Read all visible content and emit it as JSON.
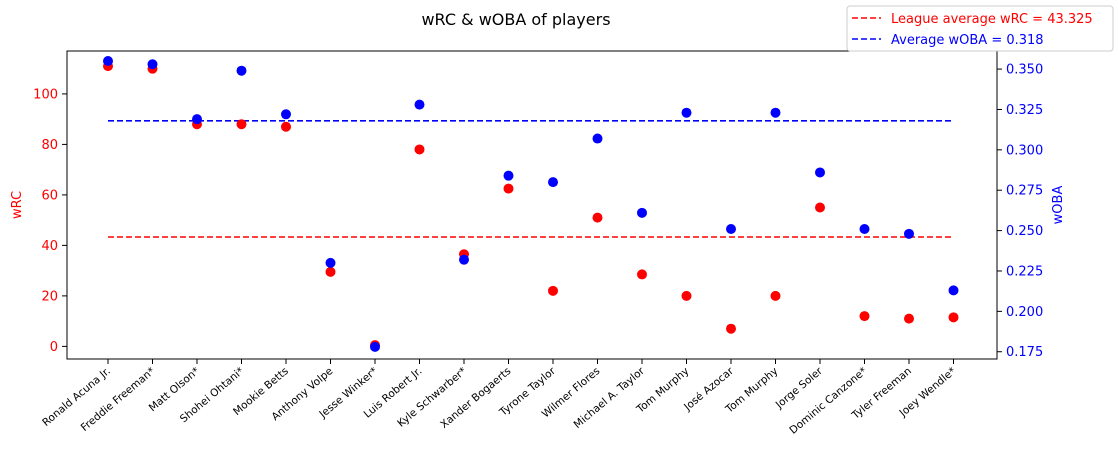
{
  "chart_data": {
    "type": "scatter",
    "title": "wRC & wOBA of players",
    "categories": [
      "Ronald Acuna Jr.",
      "Freddie Freeman*",
      "Matt Olson*",
      "Shohei Ohtani*",
      "Mookie Betts",
      "Anthony Volpe",
      "Jesse Winker*",
      "Luis Robert Jr.",
      "Kyle Schwarber*",
      "Xander Bogaerts",
      "Tyrone Taylor",
      "Wilmer Flores",
      "Michael A. Taylor",
      "Tom Murphy",
      "José Azocar",
      "Tom Murphy",
      "Jorge Soler",
      "Dominic Canzone*",
      "Tyler Freeman",
      "Joey Wendle*"
    ],
    "series": [
      {
        "name": "wRC",
        "axis": "left",
        "color": "#ff0000",
        "values": [
          111,
          110,
          88,
          88,
          87,
          29.5,
          0.5,
          78,
          36.5,
          62.5,
          22,
          51,
          28.5,
          20,
          7,
          20,
          55,
          12,
          11,
          11.5
        ]
      },
      {
        "name": "wOBA",
        "axis": "right",
        "color": "#0000ff",
        "values": [
          0.355,
          0.353,
          0.319,
          0.349,
          0.322,
          0.23,
          0.178,
          0.328,
          0.232,
          0.284,
          0.28,
          0.307,
          0.261,
          0.323,
          0.251,
          0.323,
          0.286,
          0.251,
          0.248,
          0.213
        ]
      }
    ],
    "reference_lines": [
      {
        "label": "League average wRC = 43.325",
        "value": 43.325,
        "axis": "left",
        "color": "#ff0000",
        "style": "dashed"
      },
      {
        "label": "Average wOBA = 0.318",
        "value": 0.318,
        "axis": "right",
        "color": "#0000ff",
        "style": "dashed"
      }
    ],
    "ylabel_left": "wRC",
    "ylabel_right": "wOBA",
    "ylim_left": [
      -5,
      117
    ],
    "ylim_right": [
      0.1705,
      0.3612
    ],
    "yticks_left": [
      "0",
      "20",
      "40",
      "60",
      "80",
      "100"
    ],
    "yticks_right": [
      "0.175",
      "0.200",
      "0.225",
      "0.250",
      "0.275",
      "0.300",
      "0.325",
      "0.350"
    ],
    "grid": false,
    "legend_position": "top-right"
  }
}
